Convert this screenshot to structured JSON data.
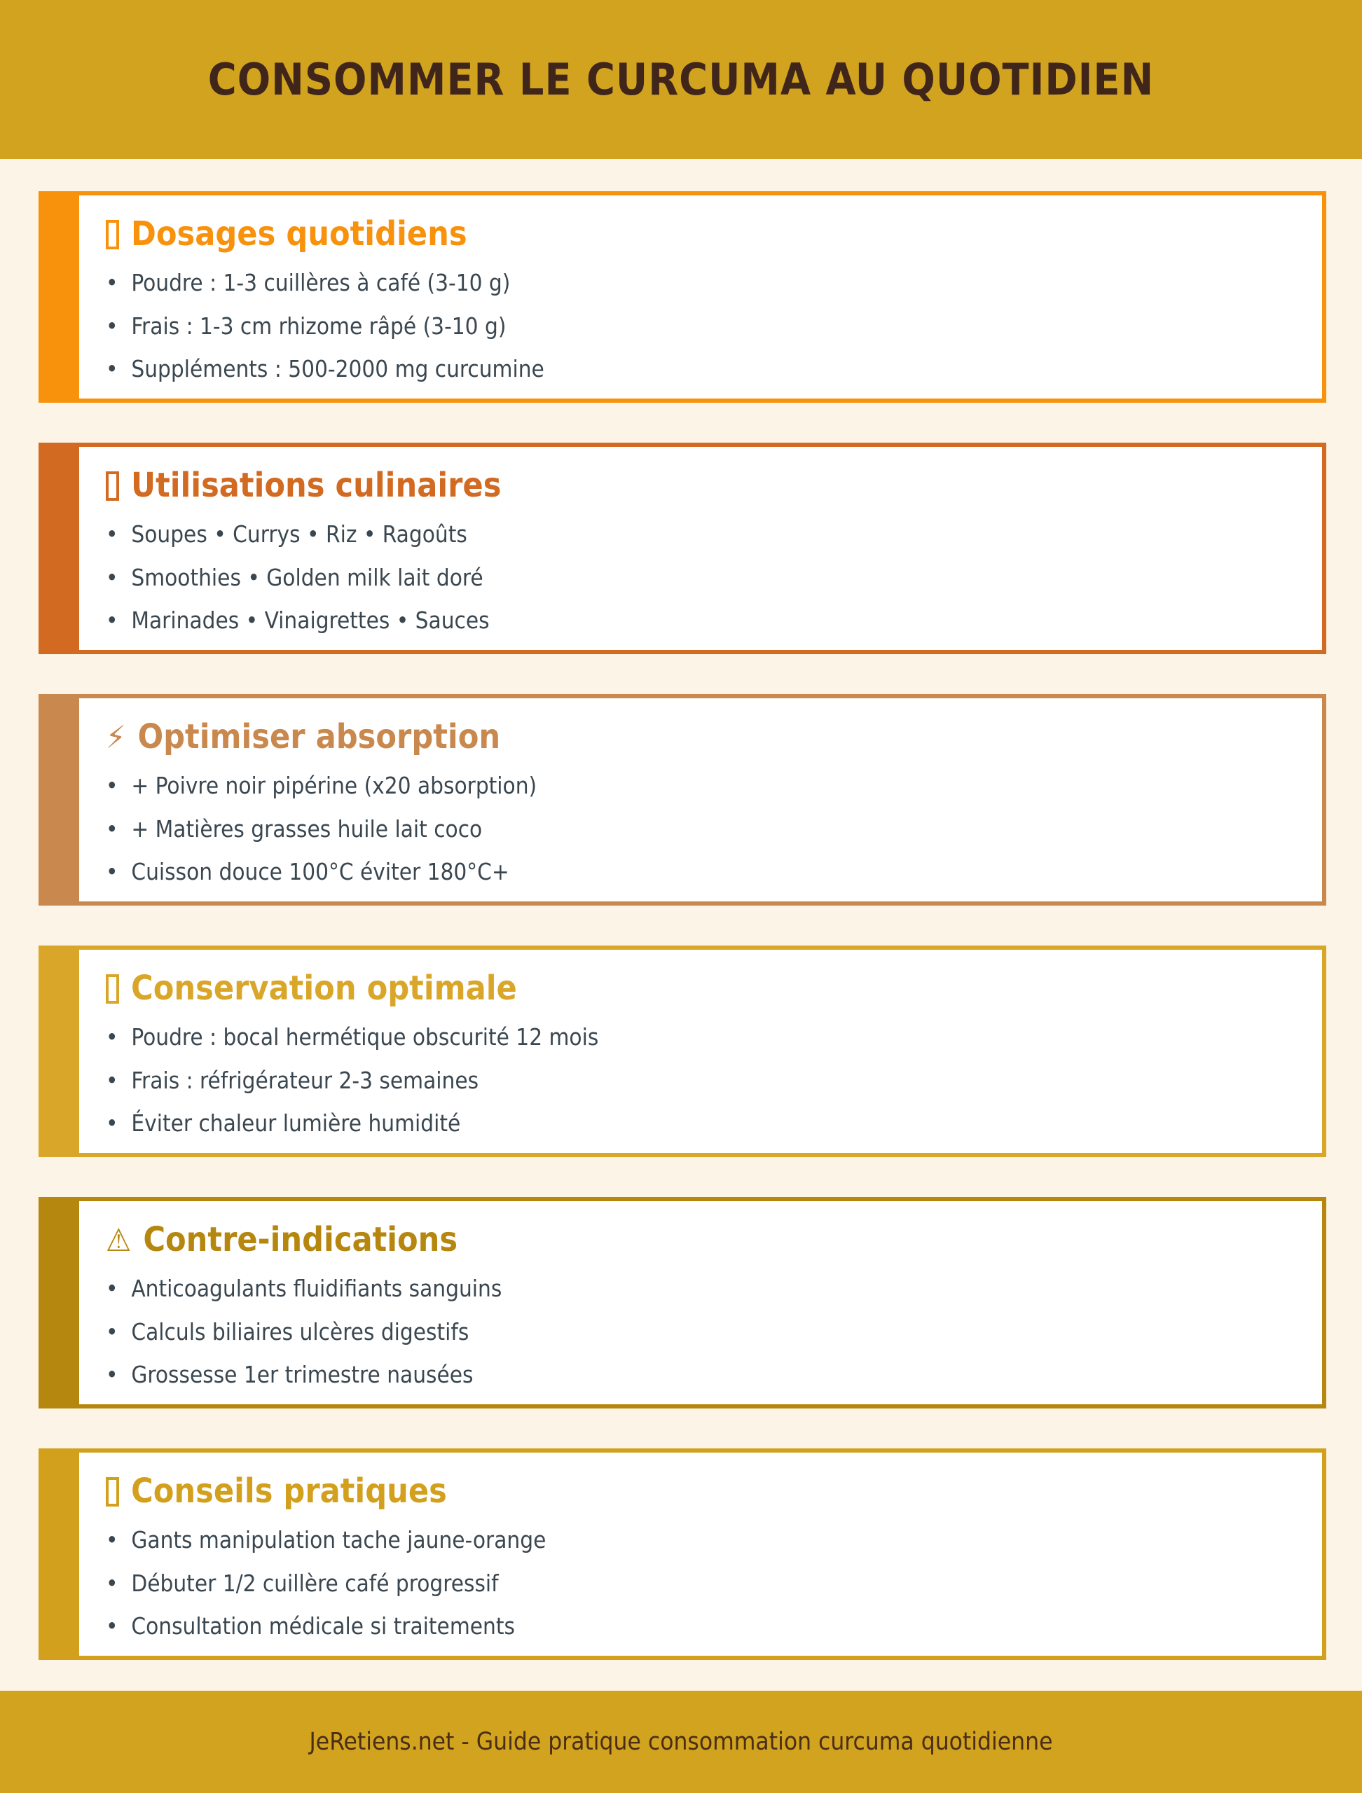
{
  "header": {
    "title": "CONSOMMER LE CURCUMA AU QUOTIDIEN"
  },
  "colors": {
    "banner_gold": "#D1A31E",
    "page_cream": "#FCF4E6",
    "card_white": "#FFFFFF",
    "title_brown": "#40261A",
    "body_text": "#3B4750",
    "footer_text": "#4A2E16"
  },
  "cards": [
    {
      "id": "dosages",
      "icon": "box",
      "icon_name": "missing-glyph-box-icon",
      "title": "Dosages quotidiens",
      "accent": "#F8910B",
      "items": [
        "Poudre : 1-3 cuillères à café (3-10 g)",
        "Frais : 1-3 cm rhizome râpé (3-10 g)",
        "Suppléments : 500-2000 mg curcumine"
      ]
    },
    {
      "id": "utilisations-culinaires",
      "icon": "box",
      "icon_name": "missing-glyph-box-icon",
      "title": "Utilisations culinaires",
      "accent": "#D26A22",
      "items": [
        "Soupes • Currys • Riz • Ragoûts",
        "Smoothies • Golden milk lait doré",
        "Marinades • Vinaigrettes • Sauces"
      ]
    },
    {
      "id": "optimiser-absorption",
      "icon": "⚡",
      "icon_name": "lightning-icon",
      "title": "Optimiser absorption",
      "accent": "#C9884D",
      "items": [
        "+ Poivre noir pipérine (x20 absorption)",
        "+ Matières grasses huile lait coco",
        "Cuisson douce 100°C éviter 180°C+"
      ]
    },
    {
      "id": "conservation-optimale",
      "icon": "box",
      "icon_name": "missing-glyph-box-icon",
      "title": "Conservation optimale",
      "accent": "#D9A629",
      "items": [
        "Poudre : bocal hermétique obscurité 12 mois",
        "Frais : réfrigérateur 2-3 semaines",
        "Éviter chaleur lumière humidité"
      ]
    },
    {
      "id": "contre-indications",
      "icon": "⚠",
      "icon_name": "warning-icon",
      "title": "Contre-indications",
      "accent": "#B6870F",
      "items": [
        "Anticoagulants fluidifiants sanguins",
        "Calculs biliaires ulcères digestifs",
        "Grossesse 1er trimestre nausées"
      ]
    },
    {
      "id": "conseils-pratiques",
      "icon": "box",
      "icon_name": "missing-glyph-box-icon",
      "title": "Conseils pratiques",
      "accent": "#D2A01D",
      "items": [
        "Gants manipulation tache jaune-orange",
        "Débuter 1/2 cuillère café progressif",
        "Consultation médicale si traitements"
      ]
    }
  ],
  "footer": {
    "text": "JeRetiens.net - Guide pratique consommation curcuma quotidienne"
  }
}
